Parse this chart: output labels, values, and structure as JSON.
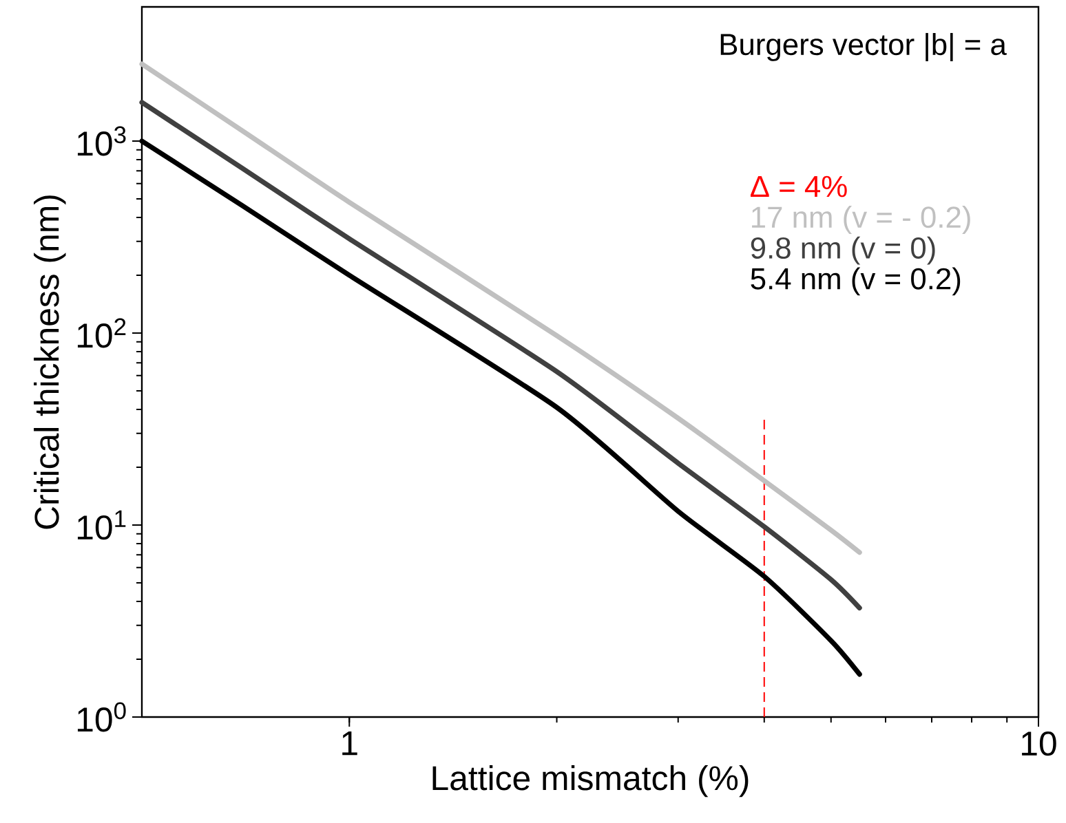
{
  "chart_data": {
    "type": "line",
    "xlabel": "Lattice mismatch (%)",
    "ylabel": "Critical thickness (nm)",
    "log": "xy",
    "xlim": [
      0.5,
      10
    ],
    "ylim": [
      1,
      5000
    ],
    "xticks": [
      1,
      10
    ],
    "yticks": [
      {
        "value": 1,
        "label": "10$^{0}$"
      },
      {
        "value": 10,
        "label": "10$^{1}$"
      },
      {
        "value": 100,
        "label": "10$^{2}$"
      },
      {
        "value": 1000,
        "label": "10$^{3}$"
      }
    ],
    "x": [
      0.5,
      0.7,
      1,
      2,
      3,
      4,
      5,
      5.5
    ],
    "series": [
      {
        "name": "17 nm (v = - 0.2)",
        "color": "#c0c0c0",
        "values": [
          2520,
          1130,
          480,
          97,
          36,
          17,
          9.4,
          7.2
        ]
      },
      {
        "name": "9.8 nm (v = 0)",
        "color": "#404040",
        "values": [
          1590,
          720,
          310,
          63,
          21,
          9.8,
          5.2,
          3.7
        ]
      },
      {
        "name": "5.4 nm (v = 0.2)",
        "color": "#000000",
        "values": [
          1000,
          460,
          200,
          41,
          11.8,
          5.4,
          2.5,
          1.67
        ]
      }
    ],
    "ref_lines": [
      {
        "axis": "x",
        "value": 4,
        "label": "Δ = 4%",
        "color": "#ff0000",
        "line_style": "dashed"
      }
    ],
    "annotations": [
      "Burgers vector |b| = a"
    ],
    "legend": "top right",
    "grid": false,
    "line_style": "solid",
    "marker": "none"
  }
}
